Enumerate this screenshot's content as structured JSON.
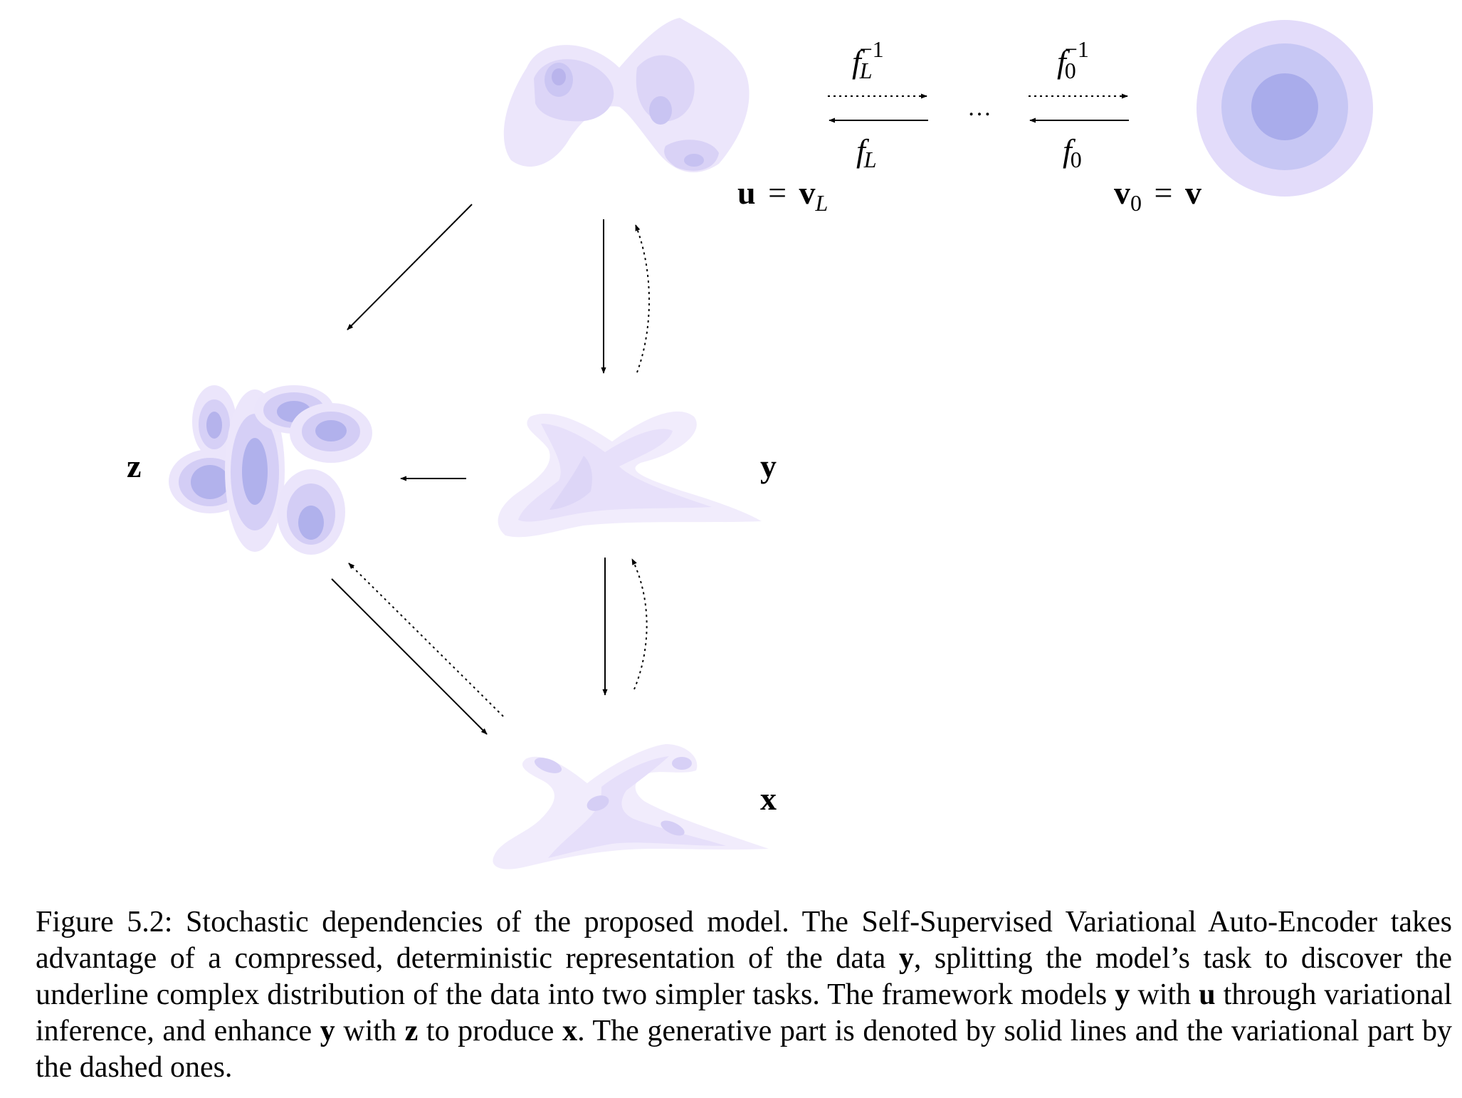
{
  "diagram": {
    "labels": {
      "u_eq_vL": {
        "left": "u",
        "eq": "=",
        "right": "v",
        "sub": "L"
      },
      "v0_eq_v": {
        "left": "v",
        "sub": "0",
        "eq": "=",
        "right": "v"
      },
      "y": "y",
      "z": "z",
      "x": "x",
      "ellipsis": "…",
      "fL_inv": {
        "f": "f",
        "sub": "L",
        "sup": "−1"
      },
      "f0_inv": {
        "f": "f",
        "sub": "0",
        "sup": "−1"
      },
      "fL": {
        "f": "f",
        "sub": "L"
      },
      "f0": {
        "f": "f",
        "sub": "0"
      }
    },
    "colors": {
      "blob_light": "#ece6fb",
      "blob_mid": "#d9d1f5",
      "blob_dark": "#b9b4ec",
      "gauss_outer": "#e3dcfa",
      "gauss_mid": "#c7c7f4",
      "gauss_inner": "#a9aceb"
    }
  },
  "caption": {
    "s1": "Figure 5.2: Stochastic dependencies of the proposed model. The Self-Supervised Variational Auto-Encoder takes advantage of a compressed, deterministic representation of the data ",
    "v1": "y",
    "s2": ", splitting the model’s task to discover the underline complex distribution of the data into two simpler tasks. The framework models ",
    "v2": "y",
    "s3": " with ",
    "v3": "u",
    "s4": " through variational inference, and enhance ",
    "v4": "y",
    "s5": " with ",
    "v5": "z",
    "s6": " to produce ",
    "v6": "x",
    "s7": ". The generative part is denoted by solid lines and the variational part by the dashed ones."
  }
}
